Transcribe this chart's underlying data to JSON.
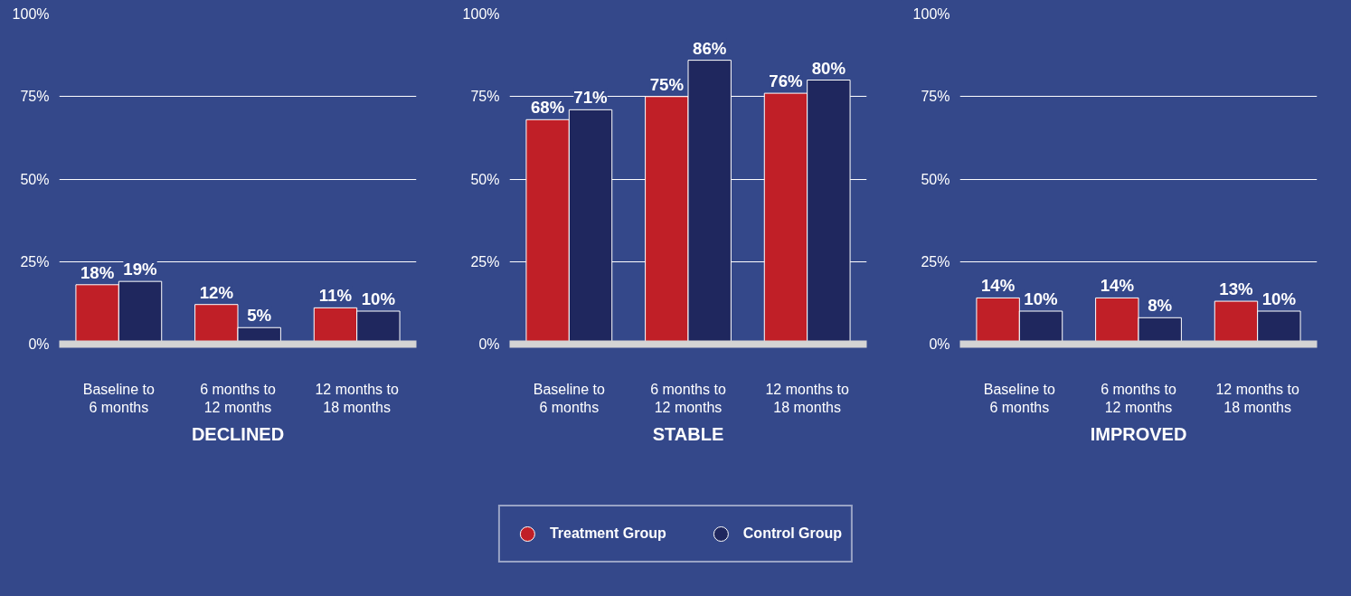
{
  "chart_data": [
    {
      "type": "bar",
      "title": "DECLINED",
      "categories": [
        "Baseline to\n6 months",
        "6 months to\n12 months",
        "12 months to\n18 months"
      ],
      "series": [
        {
          "color": "#c01f27",
          "values": [
            18,
            12,
            11
          ],
          "value_labels": [
            "18%",
            "12%",
            "11%"
          ]
        },
        {
          "color": "#1f275e",
          "values": [
            19,
            5,
            10
          ],
          "value_labels": [
            "19%",
            "5%",
            "10%"
          ]
        }
      ],
      "ylim": [
        0,
        100
      ],
      "yticks": [
        {
          "value": 0,
          "label": "0%"
        },
        {
          "value": 25,
          "label": "25%"
        },
        {
          "value": 50,
          "label": "50%"
        },
        {
          "value": 75,
          "label": "75%"
        },
        {
          "value": 100,
          "label": "100%"
        }
      ],
      "grid": "y"
    },
    {
      "type": "bar",
      "title": "STABLE",
      "categories": [
        "Baseline to\n6 months",
        "6 months to\n12 months",
        "12 months to\n18 months"
      ],
      "series": [
        {
          "name": "Treatment Group",
          "color": "#c01f27",
          "values": [
            68,
            75,
            76
          ],
          "value_labels": [
            "68%",
            "75%",
            "76%"
          ]
        },
        {
          "name": "Control Group",
          "color": "#1f275e",
          "values": [
            71,
            86,
            80
          ],
          "value_labels": [
            "71%",
            "86%",
            "80%"
          ]
        }
      ],
      "ylim": [
        0,
        100
      ],
      "yticks": [
        {
          "value": 0,
          "label": "0%"
        },
        {
          "value": 25,
          "label": "25%"
        },
        {
          "value": 50,
          "label": "50%"
        },
        {
          "value": 75,
          "label": "75%"
        },
        {
          "value": 100,
          "label": "100%"
        }
      ],
      "grid": "y",
      "legend": "bottom"
    },
    {
      "type": "bar",
      "title": "IMPROVED",
      "categories": [
        "Baseline to\n6 months",
        "6 months to\n12 months",
        "12 months to\n18 months"
      ],
      "series": [
        {
          "color": "#c01f27",
          "values": [
            14,
            14,
            13
          ],
          "value_labels": [
            "14%",
            "14%",
            "13%"
          ]
        },
        {
          "color": "#1f275e",
          "values": [
            10,
            8,
            10
          ],
          "value_labels": [
            "10%",
            "8%",
            "10%"
          ]
        }
      ],
      "ylim": [
        0,
        100
      ],
      "yticks": [
        {
          "value": 0,
          "label": "0%"
        },
        {
          "value": 25,
          "label": "25%"
        },
        {
          "value": 50,
          "label": "50%"
        },
        {
          "value": 75,
          "label": "75%"
        },
        {
          "value": 100,
          "label": "100%"
        }
      ],
      "grid": "y"
    }
  ]
}
